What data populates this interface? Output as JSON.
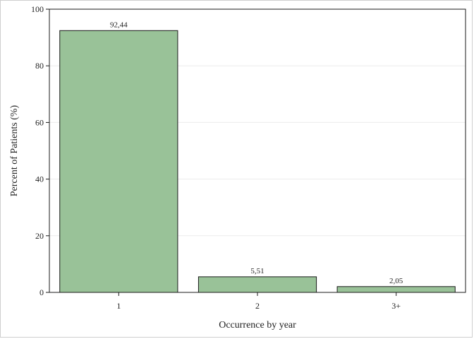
{
  "chart_data": {
    "type": "bar",
    "categories": [
      "1",
      "2",
      "3+"
    ],
    "values": [
      92.44,
      5.51,
      2.05
    ],
    "value_labels": [
      "92,44",
      "5,51",
      "2,05"
    ],
    "title": "",
    "xlabel": "Occurrence by year",
    "ylabel": "Percent of Patients (%)",
    "ylim": [
      0,
      100
    ],
    "yticks": [
      0,
      20,
      40,
      60,
      80,
      100
    ],
    "grid": true,
    "bar_color": "#99c298",
    "bar_edge_color": "#1a1a1a"
  }
}
